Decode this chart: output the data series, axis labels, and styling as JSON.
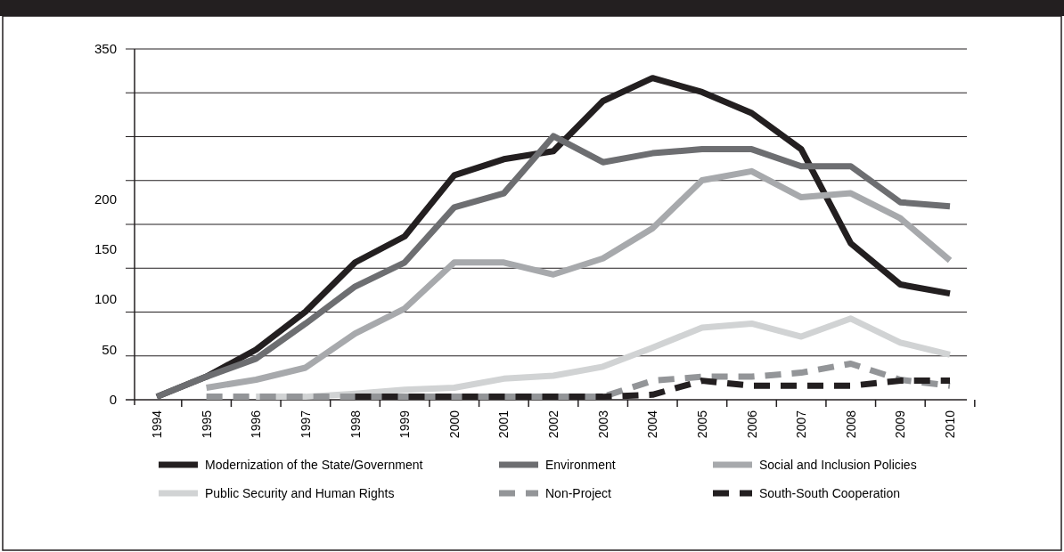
{
  "chart_data": {
    "type": "line",
    "categories": [
      "1994",
      "1995",
      "1996",
      "1997",
      "1998",
      "1999",
      "2000",
      "2001",
      "2002",
      "2003",
      "2004",
      "2005",
      "2006",
      "2007",
      "2008",
      "2009",
      "2010"
    ],
    "ylim": [
      0,
      350
    ],
    "yticks": [
      0,
      {
        "value": 43.75,
        "label": null
      },
      50,
      {
        "value": 87.5,
        "label": null
      },
      100,
      {
        "value": 131.25,
        "label": null
      },
      150,
      {
        "value": 175,
        "label": null
      },
      200,
      {
        "value": 218.75,
        "label": null
      },
      {
        "value": 262.5,
        "label": null
      },
      {
        "value": 306.25,
        "label": null
      },
      350
    ],
    "grid": "y",
    "legend": "bottom",
    "line_style": "solid",
    "marker": "none",
    "series": [
      {
        "name": "Modernization of the State/Government",
        "color": "#231f20",
        "values": [
          3,
          23,
          50,
          88,
          137,
          163,
          224,
          240,
          248,
          298,
          321,
          307,
          286,
          250,
          156,
          115,
          106
        ]
      },
      {
        "name": "Environment",
        "color": "#6d6e71",
        "values": [
          3,
          23,
          41,
          76,
          113,
          137,
          192,
          206,
          263,
          237,
          246,
          250,
          250,
          233,
          233,
          197,
          193
        ]
      },
      {
        "name": "Social and Inclusion Policies",
        "color": "#a7a9ac",
        "values": [
          null,
          12,
          20,
          32,
          66,
          91,
          137,
          137,
          125,
          141,
          171,
          219,
          228,
          202,
          206,
          181,
          139
        ]
      },
      {
        "name": "Public Security and Human Rights",
        "color": "#d1d3d4",
        "values": [
          null,
          null,
          3,
          3,
          6,
          10,
          12,
          21,
          24,
          33,
          52,
          72,
          76,
          63,
          81,
          57,
          45
        ]
      },
      {
        "name": "Non-Project",
        "color": "#939598",
        "line_style": "dashed",
        "values": [
          null,
          3,
          3,
          3,
          3,
          3,
          3,
          3,
          3,
          3,
          19,
          23,
          23,
          27,
          36,
          20,
          14
        ]
      },
      {
        "name": "South-South Cooperation",
        "color": "#231f20",
        "line_style": "dashed",
        "values": [
          null,
          null,
          null,
          null,
          3,
          3,
          3,
          3,
          3,
          3,
          5,
          19,
          14,
          14,
          14,
          19,
          19
        ]
      }
    ]
  }
}
